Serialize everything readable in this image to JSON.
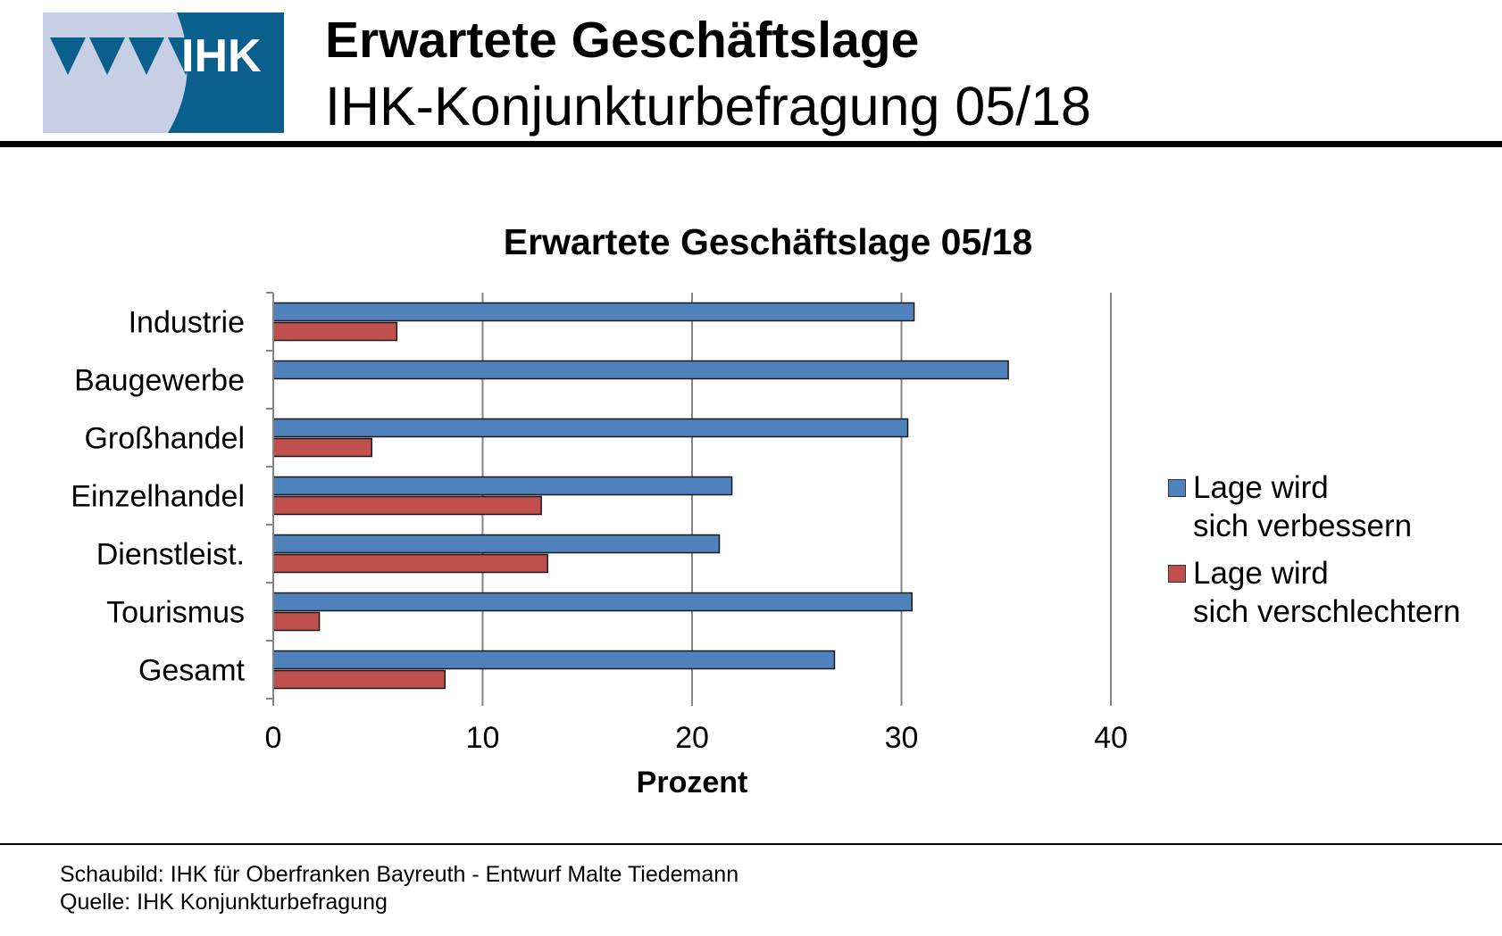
{
  "header": {
    "title": "Erwartete Geschäftslage",
    "subtitle": "IHK-Konjunkturbefragung 05/18"
  },
  "logo": {
    "text": "IHK"
  },
  "colors": {
    "logo_blue": "#0b5f8c",
    "logo_light": "#c7cfe5",
    "series_improve": "#4f81bd",
    "series_worse": "#c0504d",
    "grid": "#858585"
  },
  "chart_data": {
    "type": "bar",
    "orientation": "horizontal",
    "title": "Erwartete Geschäftslage 05/18",
    "xlabel": "Prozent",
    "ylabel": "",
    "xlim": [
      0,
      40
    ],
    "xticks": [
      0,
      10,
      20,
      30,
      40
    ],
    "grid": true,
    "legend_position": "right",
    "categories": [
      "Industrie",
      "Baugewerbe",
      "Großhandel",
      "Einzelhandel",
      "Dienstleist.",
      "Tourismus",
      "Gesamt"
    ],
    "series": [
      {
        "name": "Lage wird\nsich verbessern",
        "color": "#4f81bd",
        "values": [
          30.6,
          35.1,
          30.3,
          21.9,
          21.3,
          30.5,
          26.8
        ]
      },
      {
        "name": "Lage wird\nsich verschlechtern",
        "color": "#c0504d",
        "values": [
          5.9,
          0,
          4.7,
          12.8,
          13.1,
          2.2,
          8.2
        ]
      }
    ]
  },
  "footer": {
    "line1": "Schaubild: IHK für Oberfranken Bayreuth - Entwurf Malte Tiedemann",
    "line2": "Quelle: IHK Konjunkturbefragung"
  }
}
